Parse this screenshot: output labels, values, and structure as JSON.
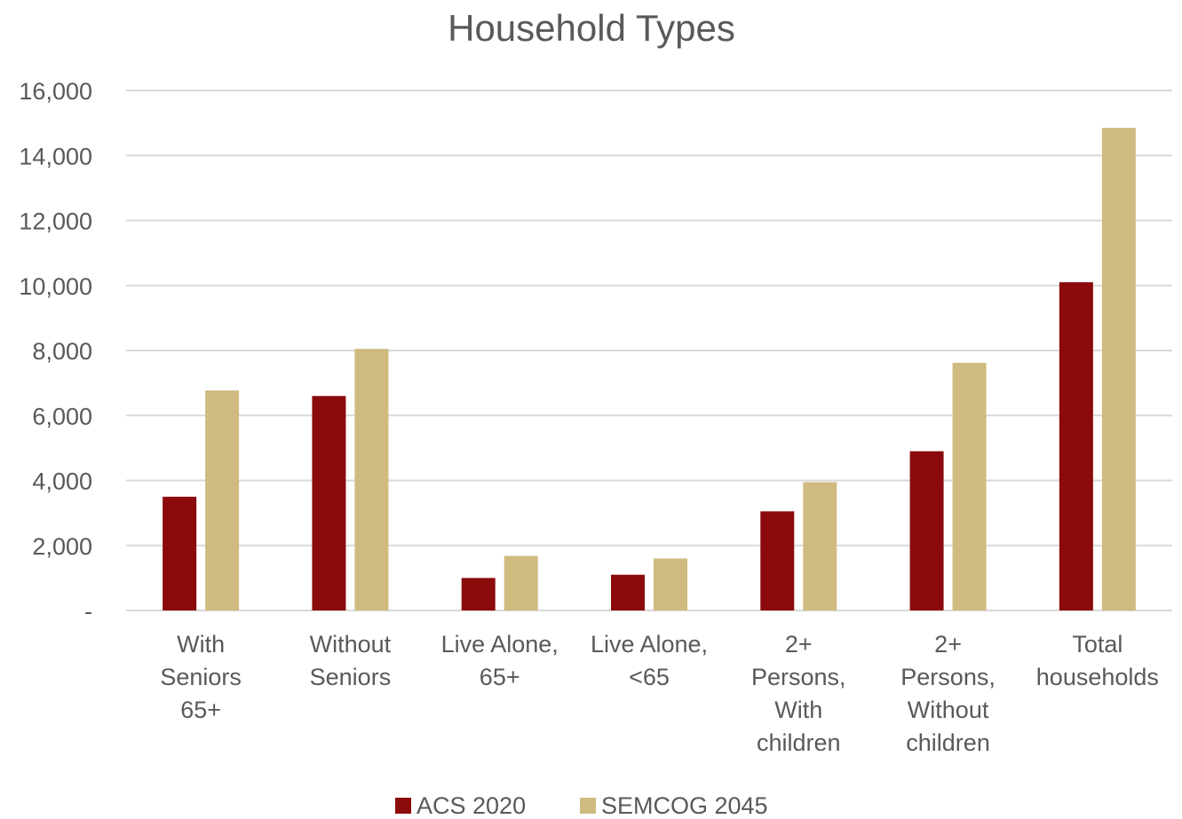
{
  "chart_data": {
    "type": "bar",
    "title": "Household Types",
    "categories": [
      [
        "With",
        "Seniors",
        "65+"
      ],
      [
        "Without",
        "Seniors"
      ],
      [
        "Live Alone,",
        "65+"
      ],
      [
        "Live Alone,",
        "<65"
      ],
      [
        "2+",
        "Persons,",
        "With",
        "children"
      ],
      [
        "2+",
        "Persons,",
        "Without",
        "children"
      ],
      [
        "Total",
        "households"
      ]
    ],
    "series": [
      {
        "name": "ACS 2020",
        "color": "#8b0a0c",
        "values": [
          3500,
          6600,
          1000,
          1100,
          3050,
          4900,
          10100
        ]
      },
      {
        "name": "SEMCOG 2045",
        "color": "#cfbb80",
        "values": [
          6770,
          8050,
          1680,
          1600,
          3950,
          7620,
          14850
        ]
      }
    ],
    "ylim": [
      0,
      16000
    ],
    "yticks": [
      {
        "value": 0,
        "label": "-"
      },
      {
        "value": 2000,
        "label": "2,000"
      },
      {
        "value": 4000,
        "label": "4,000"
      },
      {
        "value": 6000,
        "label": "6,000"
      },
      {
        "value": 8000,
        "label": "8,000"
      },
      {
        "value": 10000,
        "label": "10,000"
      },
      {
        "value": 12000,
        "label": "12,000"
      },
      {
        "value": 14000,
        "label": "14,000"
      },
      {
        "value": 16000,
        "label": "16,000"
      }
    ],
    "xlabel": "",
    "ylabel": "",
    "grid": true,
    "legend_position": "bottom"
  }
}
